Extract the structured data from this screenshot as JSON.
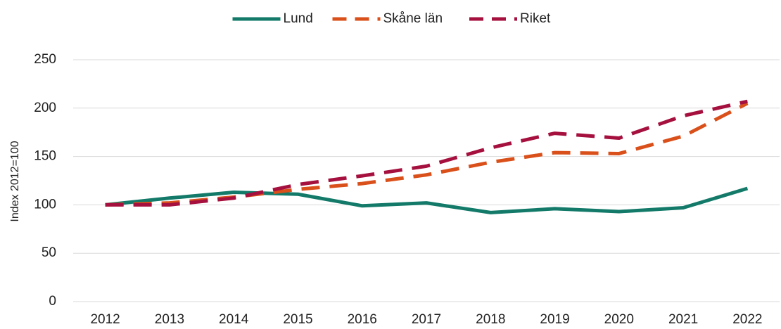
{
  "chart_data": {
    "type": "line",
    "y_label": "Index 2012=100",
    "categories": [
      "2012",
      "2013",
      "2014",
      "2015",
      "2016",
      "2017",
      "2018",
      "2019",
      "2020",
      "2021",
      "2022"
    ],
    "series": [
      {
        "name": "Lund",
        "color": "#137a69",
        "dash": "solid",
        "values": [
          100,
          107,
          113,
          111,
          99,
          102,
          92,
          96,
          93,
          97,
          117
        ]
      },
      {
        "name": "Skåne län",
        "color": "#d9501b",
        "dash": "dashed",
        "values": [
          100,
          102,
          108,
          116,
          122,
          131,
          144,
          154,
          153,
          171,
          205
        ]
      },
      {
        "name": "Riket",
        "color": "#a5103e",
        "dash": "dashed",
        "values": [
          100,
          100,
          107,
          121,
          130,
          140,
          159,
          174,
          169,
          192,
          207
        ]
      }
    ],
    "ylim": [
      0,
      250
    ],
    "yticks": [
      0,
      50,
      100,
      150,
      200,
      250
    ],
    "grid": true,
    "legend": "top"
  }
}
